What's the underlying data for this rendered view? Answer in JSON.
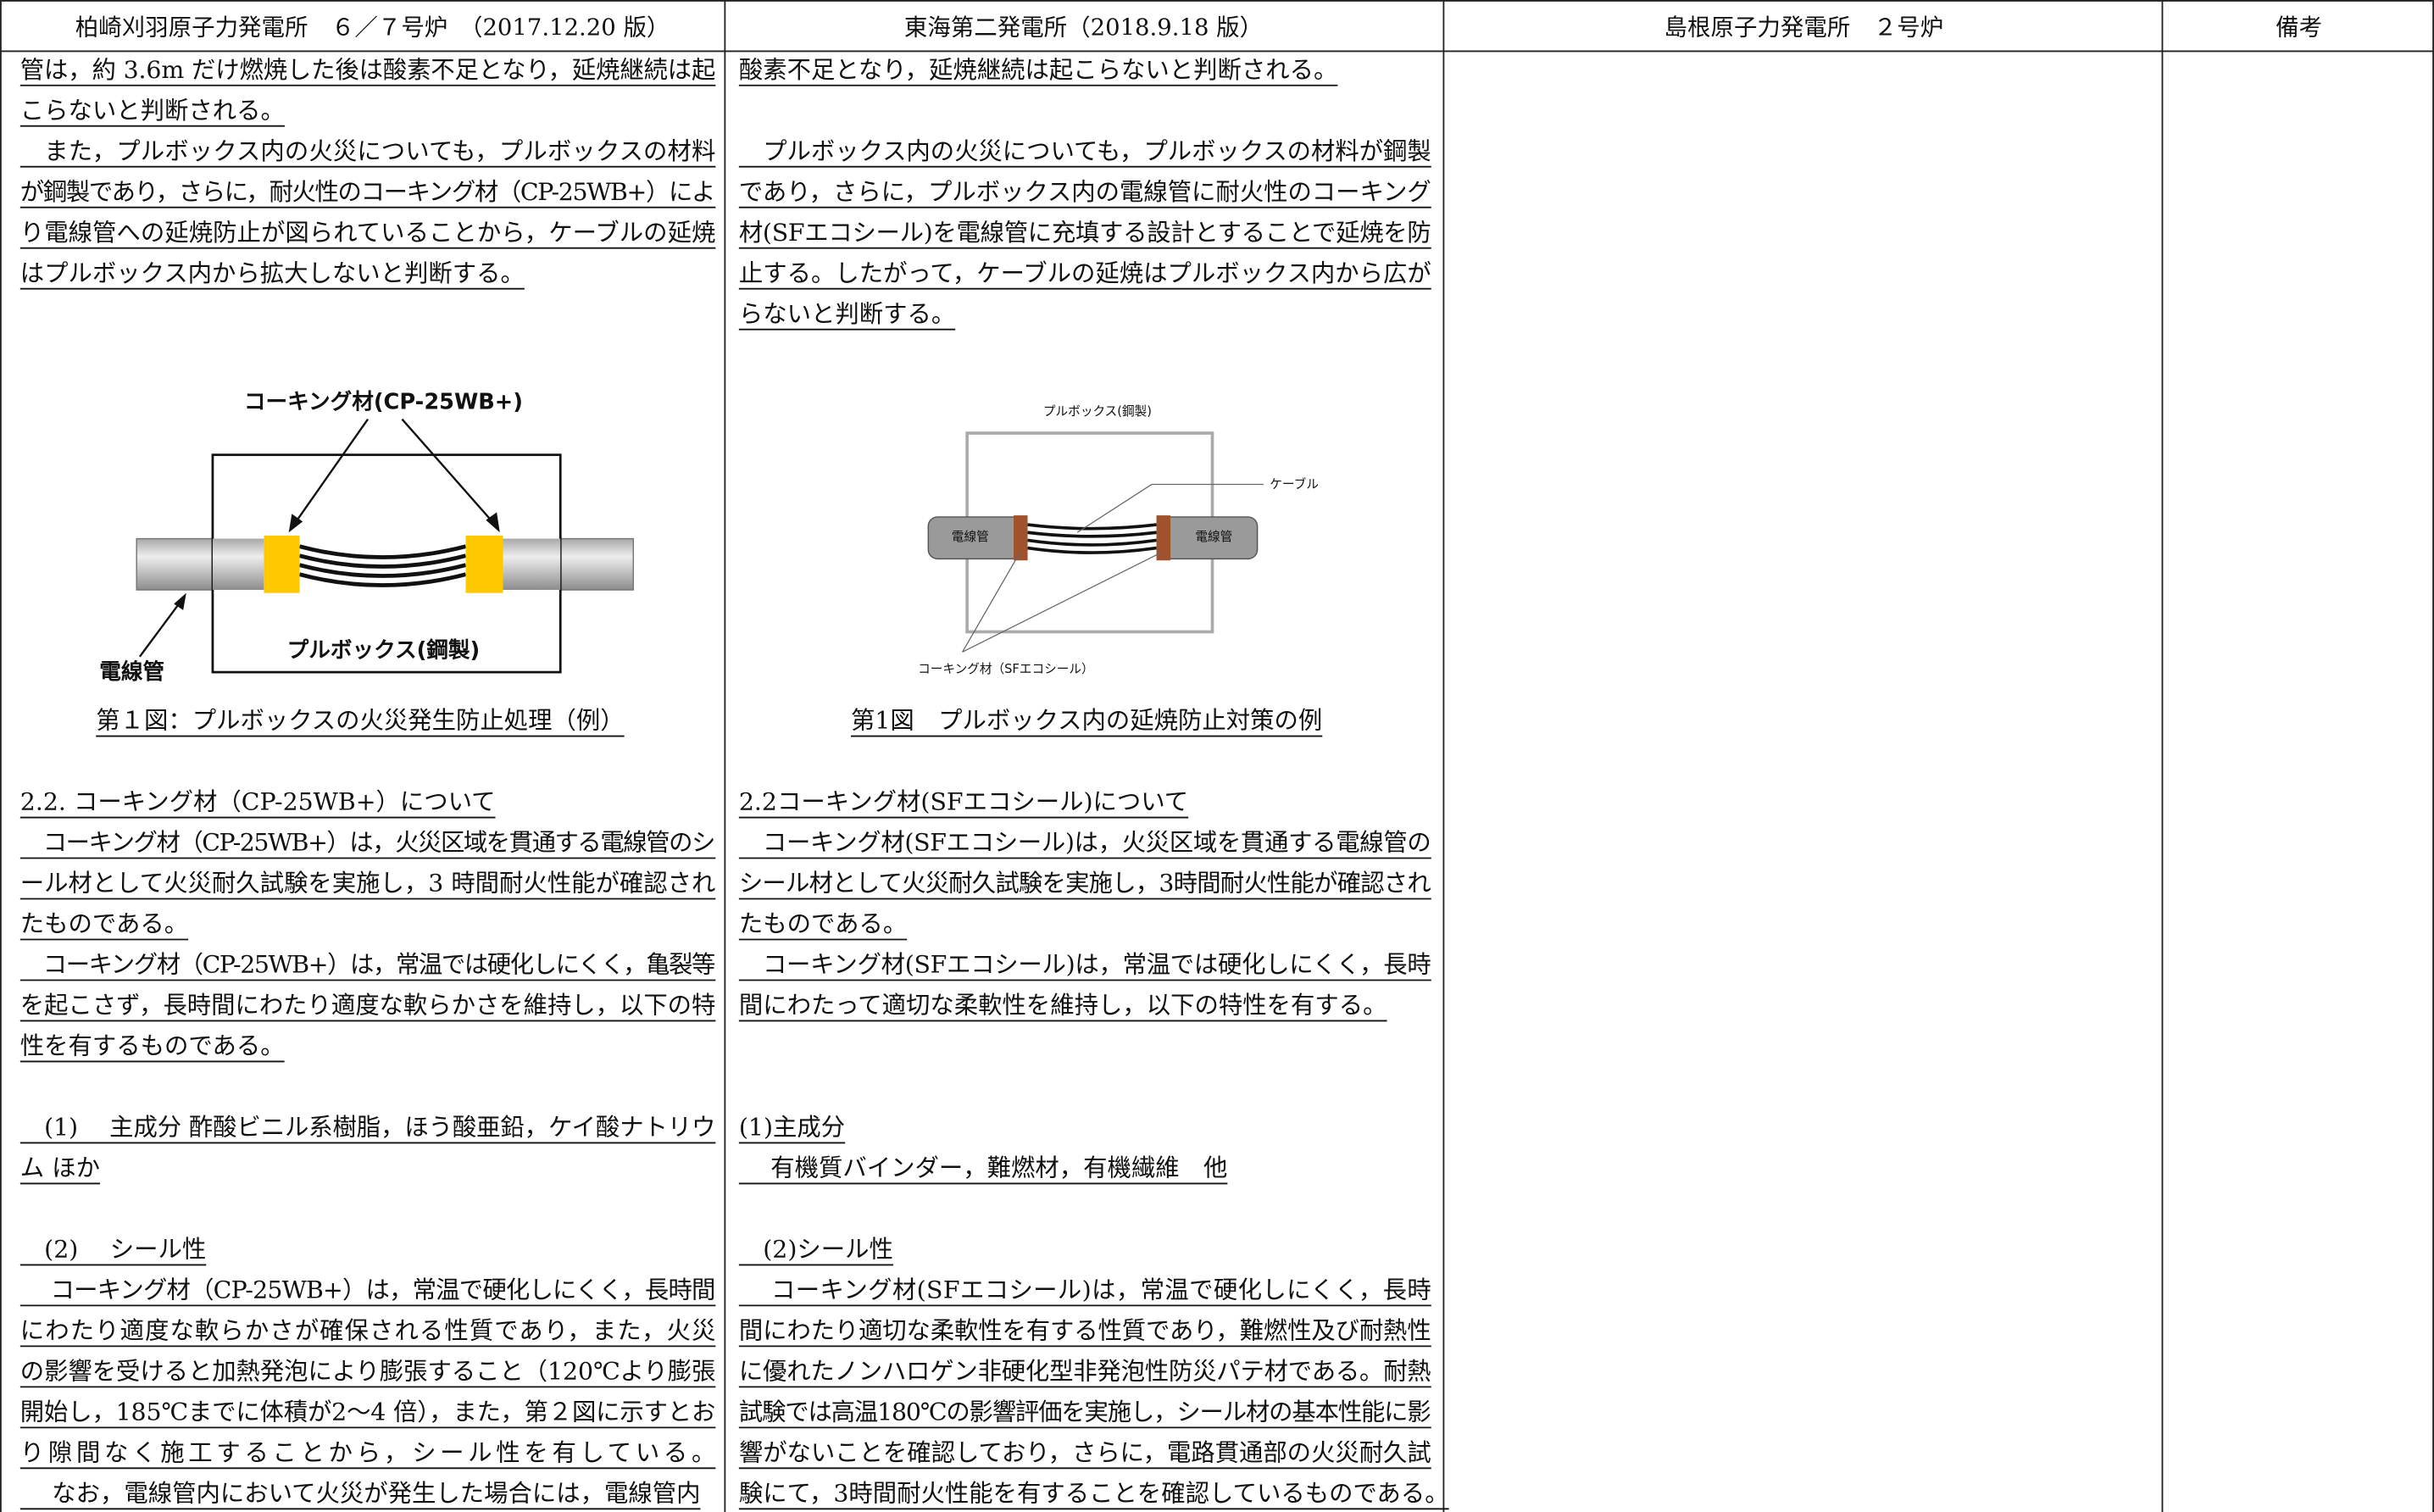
{
  "header": {
    "columns": [
      "柏崎刈羽原子力発電所　６／７号炉　（2017.12.20 版）",
      "東海第二発電所（2018.9.18 版）",
      "島根原子力発電所　２号炉",
      "備考"
    ]
  },
  "left": {
    "paragraphs": [
      [
        "管は，約 3.6m だけ燃焼した後は酸素不足となり，延焼継続は起",
        "こらないと判断される。"
      ],
      [
        "　また，プルボックス内の火災についても，プルボックスの材料",
        "が鋼製であり，さらに，耐火性のコーキング材（CP-25WB+）によ",
        "り電線管への延焼防止が図られていることから，ケーブルの延焼",
        "はプルボックス内から拡大しないと判断する。"
      ],
      [
        "2.2. コーキング材（CP-25WB+）について"
      ],
      [
        "　コーキング材（CP-25WB+）は，火災区域を貫通する電線管のシ",
        "ール材として火災耐久試験を実施し，3 時間耐火性能が確認され",
        "たものである。"
      ],
      [
        "　コーキング材（CP-25WB+）は，常温では硬化しにくく，亀裂等",
        "を起こさず，長時間にわたり適度な軟らかさを維持し，以下の特",
        "性を有するものである。"
      ],
      [
        "　(1)　 主成分 酢酸ビニル系樹脂，ほう酸亜鉛，ケイ酸ナトリウ",
        "ム ほか"
      ],
      [
        "　(2)　 シール性"
      ],
      [
        "　 コーキング材（CP-25WB+）は，常温で硬化しにくく，長時間",
        "にわたり適度な軟らかさが確保される性質であり，また，火災",
        "の影響を受けると加熱発泡により膨張すること（120℃より膨張",
        "開始し，185℃までに体積が2～4 倍），また，第２図に示すとお",
        "り隙間なく施工することから，シール性を有している。",
        "　 なお，電線管内において火災が発生した場合には，電線管内"
      ]
    ],
    "figure": {
      "caulk_label": "コーキング材(CP-25WB+)",
      "box_label": "プルボックス(鋼製)",
      "pipe_label": "電線管"
    },
    "caption": "第１図：プルボックスの火災発生防止処理（例）"
  },
  "right": {
    "paragraphs": [
      [
        "酸素不足となり，延焼継続は起こらないと判断される。"
      ],
      [
        "　プルボックス内の火災についても，プルボックスの材料が鋼製",
        "であり，さらに，プルボックス内の電線管に耐火性のコーキング",
        "材(SFエコシール)を電線管に充填する設計とすることで延焼を防",
        "止する。したがって，ケーブルの延焼はプルボックス内から広が",
        "らないと判断する。"
      ],
      [
        "2.2コーキング材(SFエコシール)について"
      ],
      [
        "　コーキング材(SFエコシール)は，火災区域を貫通する電線管の",
        "シール材として火災耐久試験を実施し，3時間耐火性能が確認され",
        "たものである。"
      ],
      [
        "　コーキング材(SFエコシール)は，常温では硬化しにくく，長時",
        "間にわたって適切な柔軟性を維持し，以下の特性を有する。"
      ],
      [
        "(1)主成分",
        "　 有機質バインダー，難燃材，有機繊維　他"
      ],
      [
        "　(2)シール性"
      ],
      [
        "　 コーキング材(SFエコシール)は，常温で硬化しにくく，長時",
        "間にわたり適切な柔軟性を有する性質であり，難燃性及び耐熱性",
        "に優れたノンハロゲン非硬化型非発泡性防災パテ材である。耐熱",
        "試験では高温180℃の影響評価を実施し，シール材の基本性能に影",
        "響がないことを確認しており，さらに，電路貫通部の火災耐久試",
        "験にて，3時間耐火性能を有することを確認しているものである。"
      ]
    ],
    "figure": {
      "box_label": "プルボックス(鋼製)",
      "cable_label": "ケーブル",
      "pipe_labels": [
        "電線管",
        "電線管"
      ],
      "caulk_label": "コーキング材（SFエコシール）"
    },
    "caption": "第1図　プルボックス内の延焼防止対策の例"
  }
}
